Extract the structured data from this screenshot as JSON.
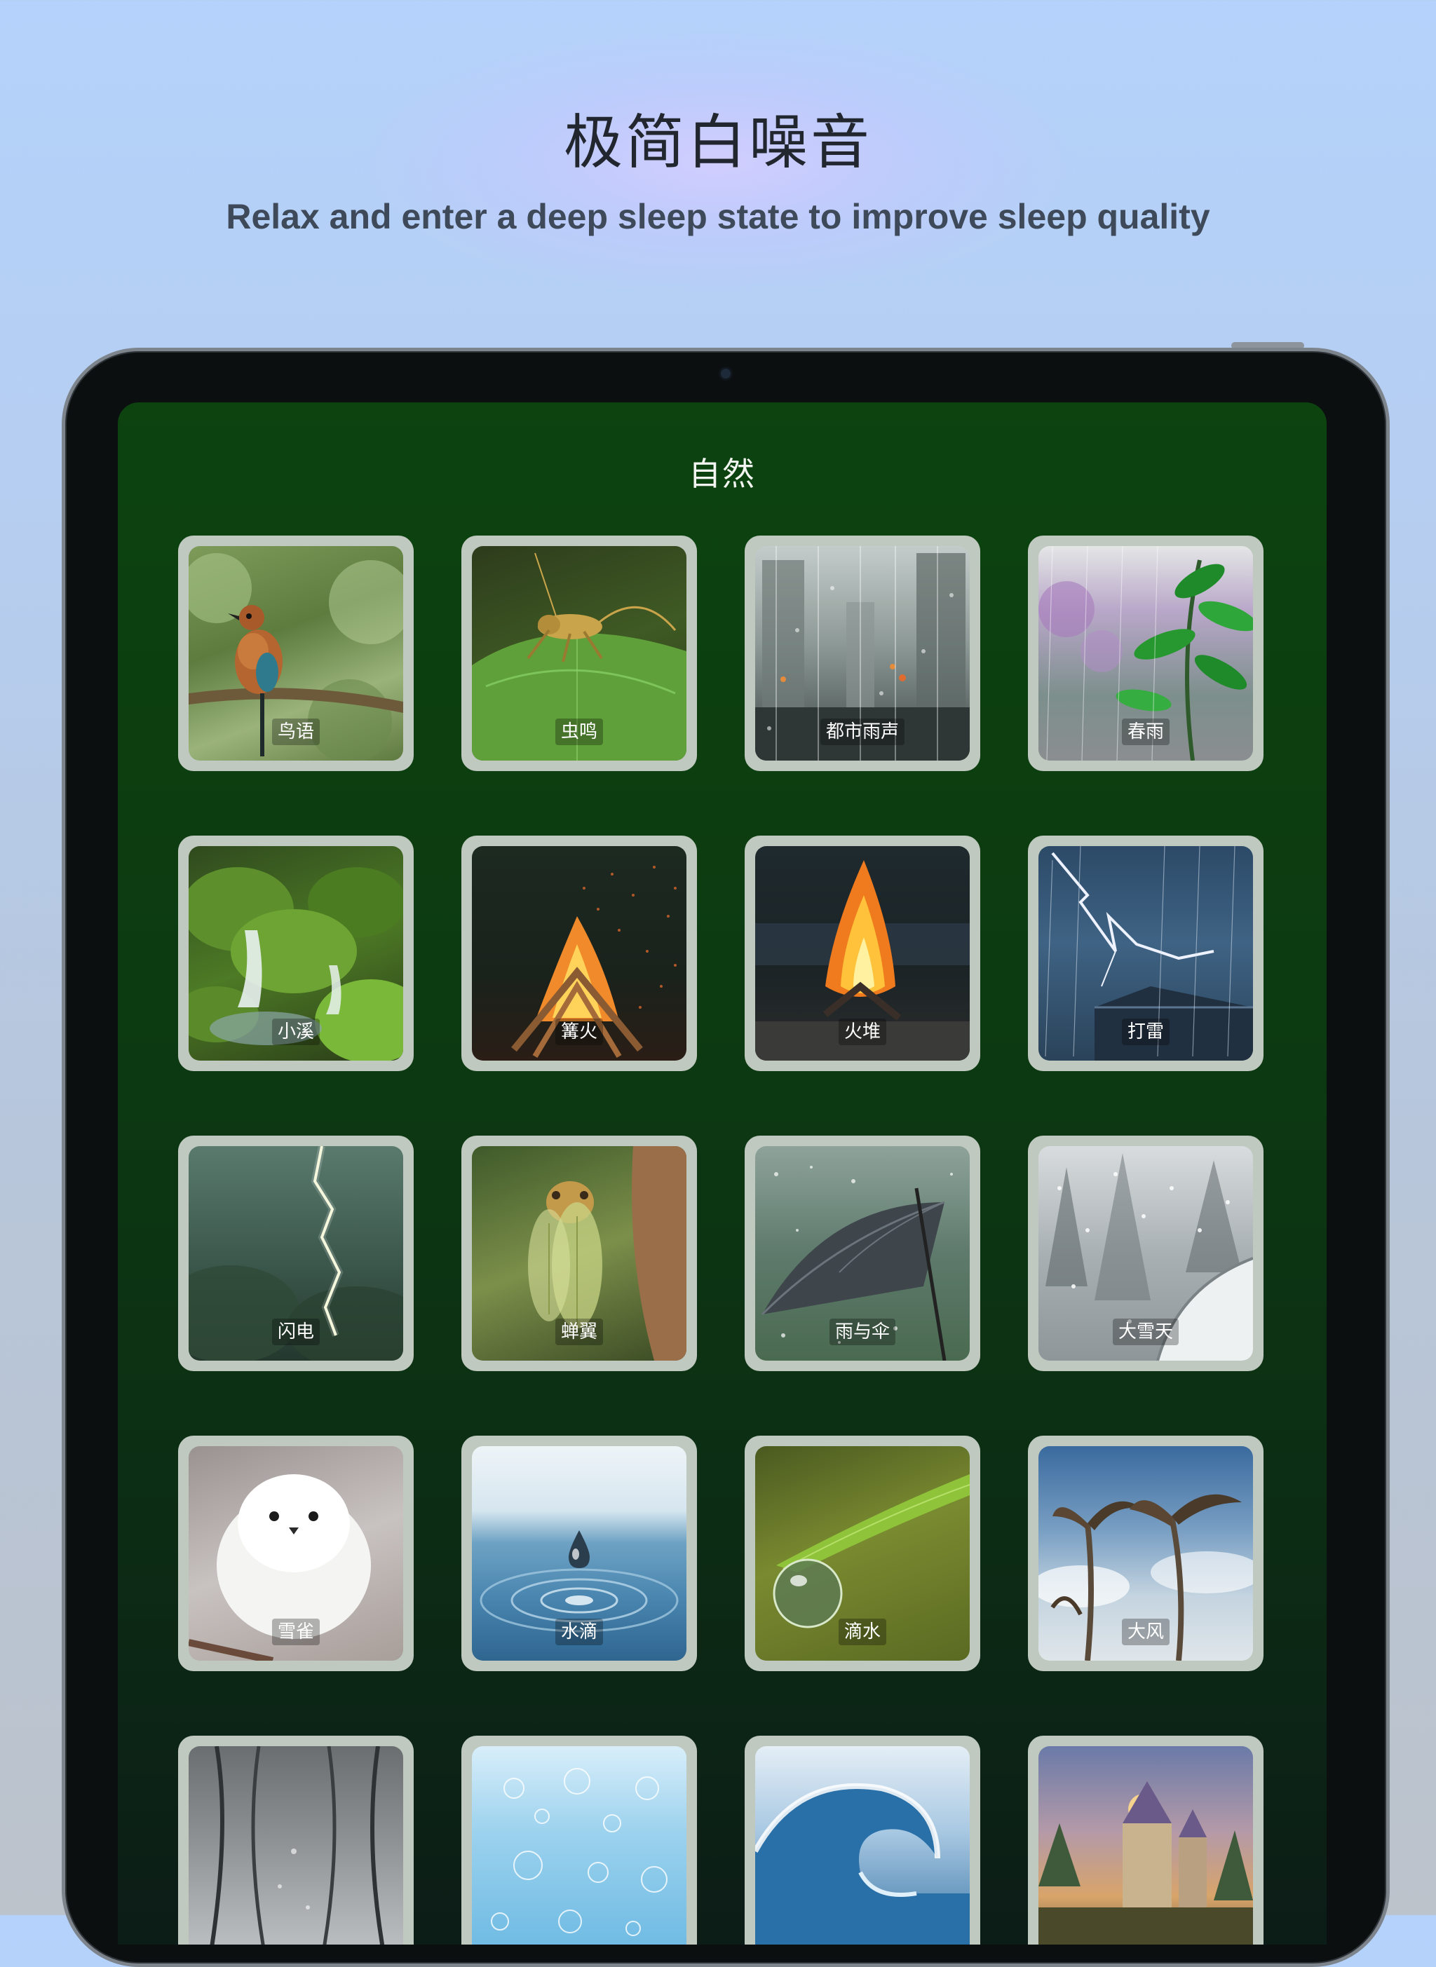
{
  "header": {
    "title": "极简白噪音",
    "subtitle": "Relax and enter a deep sleep state to improve sleep quality"
  },
  "app": {
    "section_title": "自然",
    "sounds": [
      {
        "label": "鸟语",
        "icon": "bird-image"
      },
      {
        "label": "虫鸣",
        "icon": "cricket-image"
      },
      {
        "label": "都市雨声",
        "icon": "city-rain-image"
      },
      {
        "label": "春雨",
        "icon": "spring-rain-image"
      },
      {
        "label": "小溪",
        "icon": "stream-image"
      },
      {
        "label": "篝火",
        "icon": "bonfire-image"
      },
      {
        "label": "火堆",
        "icon": "campfire-image"
      },
      {
        "label": "打雷",
        "icon": "thunder-image"
      },
      {
        "label": "闪电",
        "icon": "lightning-image"
      },
      {
        "label": "蝉翼",
        "icon": "cicada-image"
      },
      {
        "label": "雨与伞",
        "icon": "umbrella-rain-image"
      },
      {
        "label": "大雪天",
        "icon": "snowstorm-image"
      },
      {
        "label": "雪雀",
        "icon": "snow-bird-image"
      },
      {
        "label": "水滴",
        "icon": "water-drop-image"
      },
      {
        "label": "滴水",
        "icon": "dew-drop-image"
      },
      {
        "label": "大风",
        "icon": "strong-wind-image"
      },
      {
        "label": "",
        "icon": "misty-forest-image"
      },
      {
        "label": "",
        "icon": "bubbles-image"
      },
      {
        "label": "",
        "icon": "ocean-wave-image"
      },
      {
        "label": "",
        "icon": "fantasy-castle-image"
      }
    ]
  }
}
